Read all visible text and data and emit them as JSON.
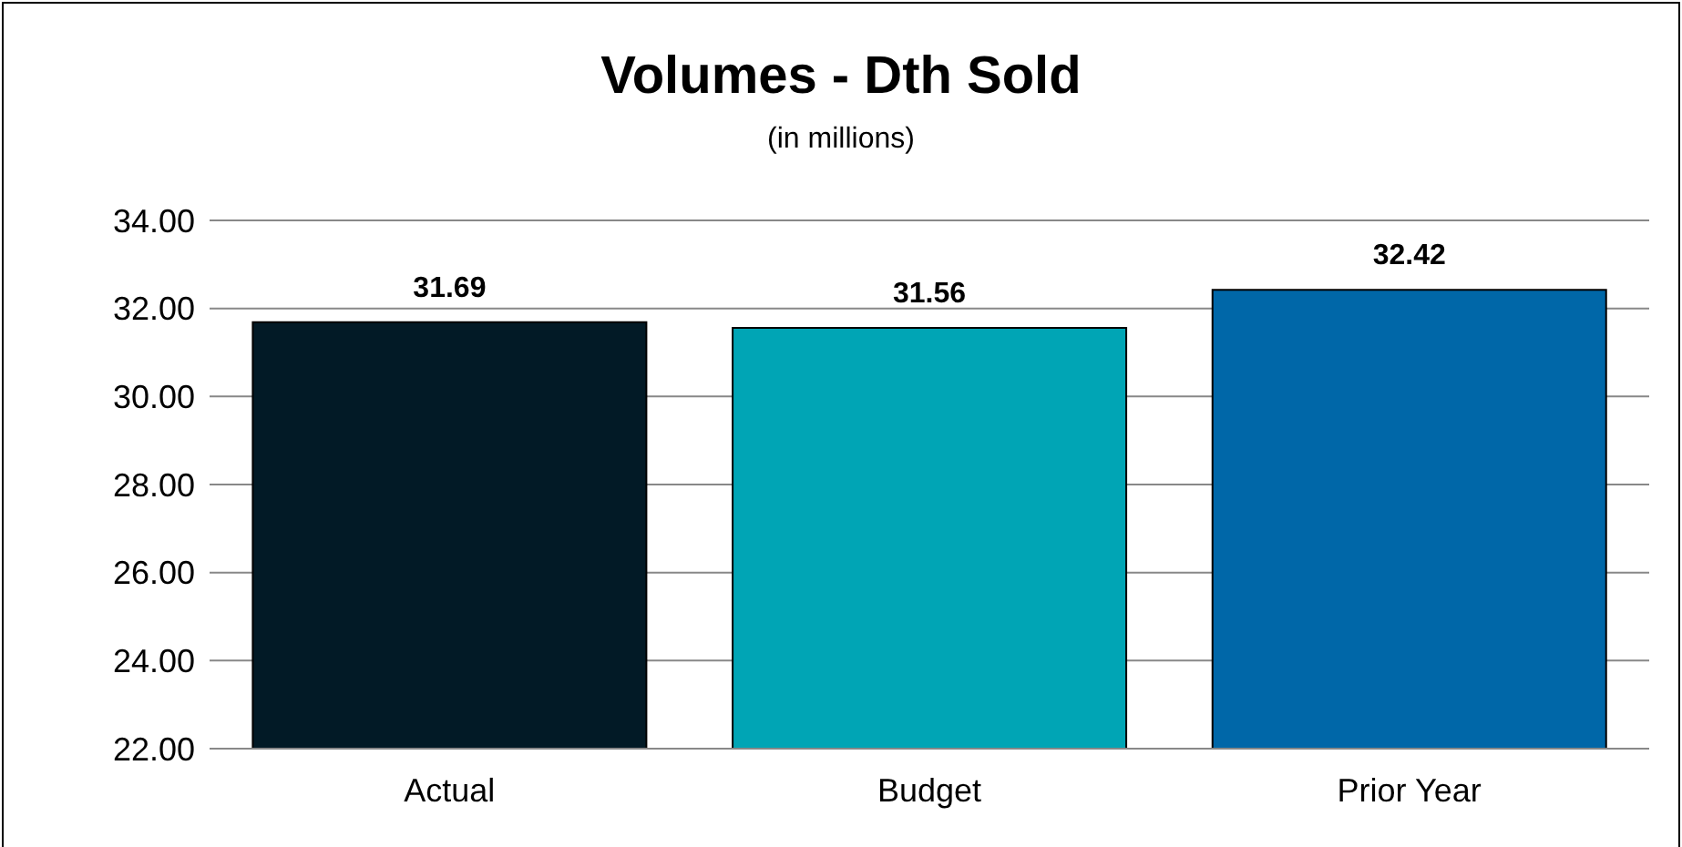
{
  "chart_data": {
    "type": "bar",
    "title": "Volumes - Dth Sold",
    "subtitle": "(in millions)",
    "categories": [
      "Actual",
      "Budget",
      "Prior Year"
    ],
    "values": [
      31.69,
      31.56,
      32.42
    ],
    "colors": [
      "#021a26",
      "#00a5b5",
      "#0067a8"
    ],
    "ylim": [
      22,
      34
    ],
    "yticks": [
      {
        "value": 22,
        "label": "22.00"
      },
      {
        "value": 24,
        "label": "24.00"
      },
      {
        "value": 26,
        "label": "26.00"
      },
      {
        "value": 28,
        "label": "28.00"
      },
      {
        "value": 30,
        "label": "30.00"
      },
      {
        "value": 32,
        "label": "32.00"
      },
      {
        "value": 34,
        "label": "34.00"
      }
    ],
    "grid": "y",
    "data_labels": true,
    "legend": false
  }
}
